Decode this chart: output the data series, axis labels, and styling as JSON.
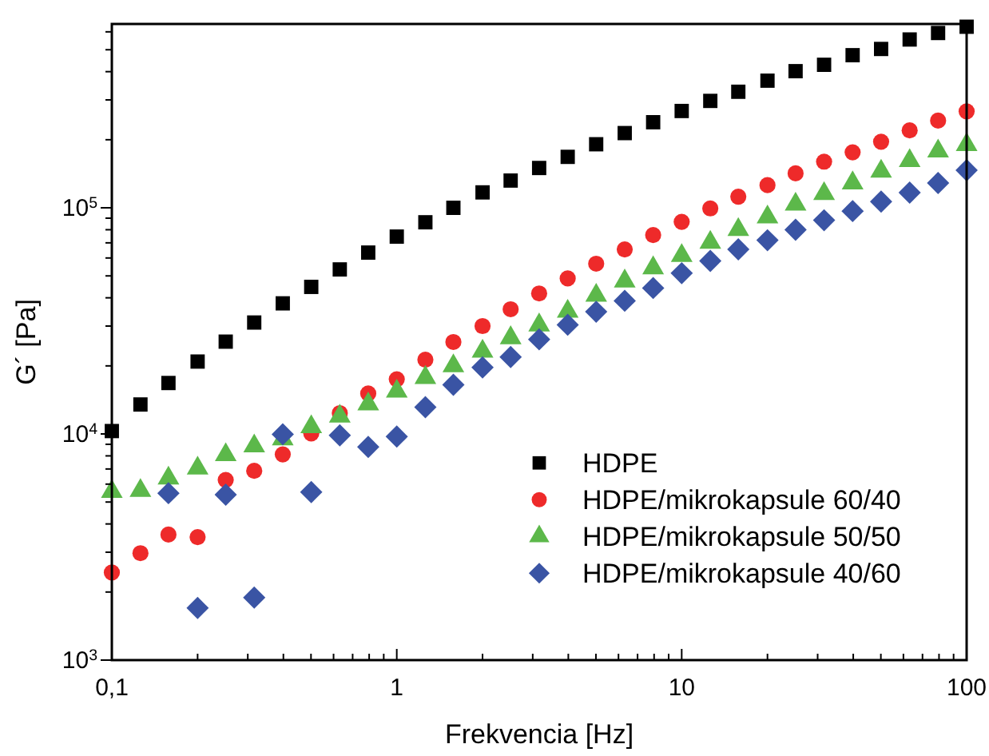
{
  "chart_data": {
    "type": "scatter",
    "xlabel": "Frekvencia [Hz]",
    "ylabel": "G´ [Pa]",
    "log": "xy",
    "legend": "bottom right",
    "x": [
      0.1,
      0.126,
      0.158,
      0.2,
      0.251,
      0.316,
      0.398,
      0.501,
      0.631,
      0.794,
      1,
      1.26,
      1.58,
      2,
      2.51,
      3.16,
      3.98,
      5.01,
      6.31,
      7.94,
      10,
      12.6,
      15.8,
      20,
      25.1,
      31.6,
      39.8,
      50.1,
      63.1,
      79.4,
      100
    ],
    "xlim": [
      0.1,
      100
    ],
    "ylim": [
      1000,
      650000
    ],
    "xticks": [
      {
        "value": 0.1,
        "label": "0,1"
      },
      {
        "value": 0.2,
        "label": null
      },
      {
        "value": 0.3,
        "label": null
      },
      {
        "value": 0.4,
        "label": null
      },
      {
        "value": 0.5,
        "label": null
      },
      {
        "value": 0.6,
        "label": null
      },
      {
        "value": 0.7,
        "label": null
      },
      {
        "value": 0.8,
        "label": null
      },
      {
        "value": 0.9,
        "label": null
      },
      1,
      {
        "value": 2,
        "label": null
      },
      {
        "value": 3,
        "label": null
      },
      {
        "value": 4,
        "label": null
      },
      {
        "value": 5,
        "label": null
      },
      {
        "value": 6,
        "label": null
      },
      {
        "value": 7,
        "label": null
      },
      {
        "value": 8,
        "label": null
      },
      {
        "value": 9,
        "label": null
      },
      10,
      {
        "value": 20,
        "label": null
      },
      {
        "value": 30,
        "label": null
      },
      {
        "value": 40,
        "label": null
      },
      {
        "value": 50,
        "label": null
      },
      {
        "value": 60,
        "label": null
      },
      {
        "value": 70,
        "label": null
      },
      {
        "value": 80,
        "label": null
      },
      {
        "value": 90,
        "label": null
      },
      100
    ],
    "yticks": [
      {
        "value": 1000,
        "label": "10$^{3}$"
      },
      {
        "value": 2000,
        "label": null
      },
      {
        "value": 3000,
        "label": null
      },
      {
        "value": 4000,
        "label": null
      },
      {
        "value": 5000,
        "label": null
      },
      {
        "value": 6000,
        "label": null
      },
      {
        "value": 7000,
        "label": null
      },
      {
        "value": 8000,
        "label": null
      },
      {
        "value": 9000,
        "label": null
      },
      {
        "value": 10000,
        "label": "10$^{4}$"
      },
      {
        "value": 20000,
        "label": null
      },
      {
        "value": 30000,
        "label": null
      },
      {
        "value": 40000,
        "label": null
      },
      {
        "value": 50000,
        "label": null
      },
      {
        "value": 60000,
        "label": null
      },
      {
        "value": 70000,
        "label": null
      },
      {
        "value": 80000,
        "label": null
      },
      {
        "value": 90000,
        "label": null
      },
      {
        "value": 100000,
        "label": "10$^{5}$"
      },
      {
        "value": 200000,
        "label": null
      },
      {
        "value": 300000,
        "label": null
      },
      {
        "value": 400000,
        "label": null
      },
      {
        "value": 500000,
        "label": null
      },
      {
        "value": 600000,
        "label": null
      }
    ],
    "series": [
      {
        "name": "HDPE",
        "color": "#000000",
        "marker": "square",
        "values": [
          10300,
          13500,
          16800,
          20900,
          25600,
          31100,
          37800,
          44700,
          53400,
          63400,
          74600,
          86300,
          100000,
          117000,
          132000,
          150000,
          168000,
          191000,
          214000,
          239000,
          268000,
          297000,
          326000,
          365000,
          402000,
          429000,
          473000,
          504000,
          555000,
          593000,
          632000
        ]
      },
      {
        "name": "HDPE/mikrokapsule 60/40",
        "color": "#ee2a2a",
        "marker": "circle",
        "values": [
          2440,
          2970,
          3590,
          3500,
          6260,
          6870,
          8120,
          10060,
          12360,
          15090,
          17450,
          21300,
          25500,
          30000,
          35600,
          41800,
          48700,
          56600,
          65500,
          75800,
          86700,
          99400,
          112000,
          126000,
          142000,
          160000,
          176000,
          196000,
          220000,
          243000,
          267000
        ]
      },
      {
        "name": "HDPE/mikrokapsule 50/50",
        "color": "#5cb84a",
        "marker": "triangle",
        "values": [
          5560,
          5620,
          6370,
          7050,
          8080,
          8840,
          9500,
          10740,
          11970,
          13560,
          15440,
          17740,
          20000,
          23200,
          26600,
          30300,
          34800,
          41000,
          47400,
          54200,
          61400,
          70300,
          80000,
          91000,
          103600,
          115500,
          128700,
          144900,
          161500,
          178000,
          189900
        ]
      },
      {
        "name": "HDPE/mikrokapsule 40/60",
        "color": "#3a54a4",
        "marker": "diamond",
        "values": [
          null,
          null,
          5470,
          1700,
          5390,
          1890,
          9970,
          5530,
          9860,
          8760,
          9740,
          13130,
          16500,
          19700,
          21900,
          26200,
          30400,
          34700,
          38800,
          44200,
          51400,
          58200,
          65500,
          71900,
          80000,
          88100,
          96700,
          106500,
          116800,
          128700,
          146600
        ]
      }
    ]
  }
}
